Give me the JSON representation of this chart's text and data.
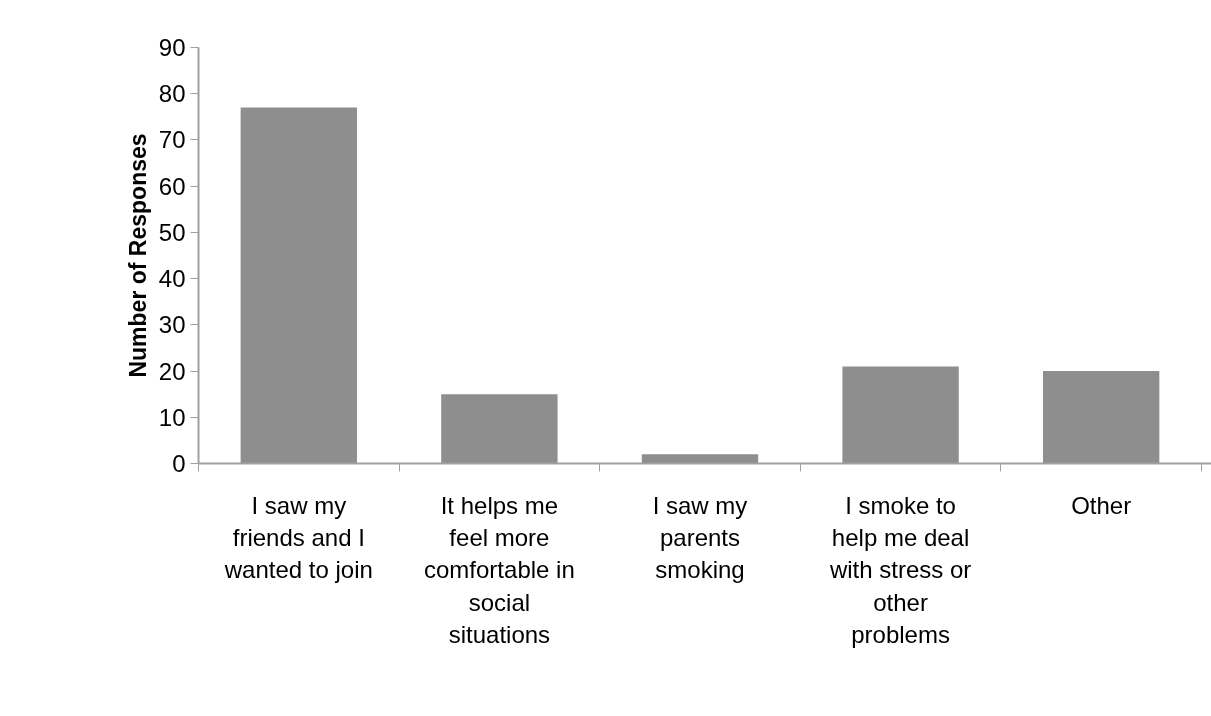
{
  "chart_data": {
    "type": "bar",
    "ylabel": "Number of Responses",
    "categories": [
      "I saw my\nfriends and I\nwanted to join",
      "It helps me\nfeel more\ncomfortable in\nsocial\nsituations",
      "I saw my\nparents\nsmoking",
      "I smoke to\nhelp me deal\nwith stress or\nother\nproblems",
      "Other"
    ],
    "values": [
      77,
      15,
      2,
      21,
      20
    ],
    "color": "#8e8e8e",
    "ylim": [
      0,
      90
    ],
    "yticks": [
      0,
      10,
      20,
      30,
      40,
      50,
      60,
      70,
      80,
      90
    ],
    "grid": false
  }
}
